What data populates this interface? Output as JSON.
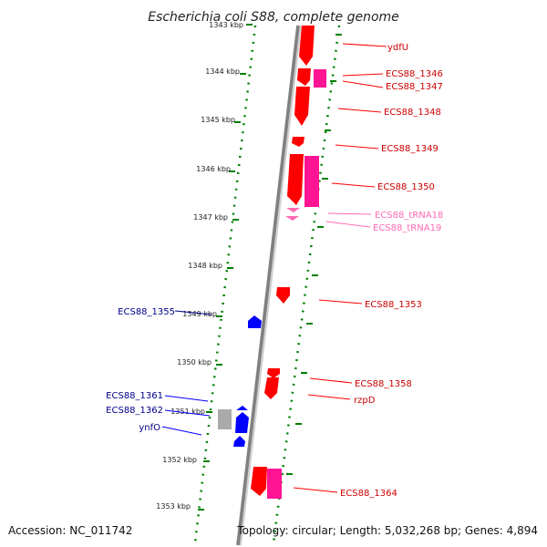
{
  "title": "Escherichia coli S88, complete genome",
  "accession": "Accession: NC_011742",
  "summary": "Topology: circular; Length: 5,032,268 bp; Genes: 4,894",
  "colors": {
    "forward_gene": "#ff0000",
    "forward_gene_alt": "#ff1493",
    "trna": "#ff69b4",
    "reverse_gene": "#0000ff",
    "grey_gene": "#aaaaaa",
    "ruler": "#008000",
    "backbone": "#808080",
    "label_forward": "#cc0000",
    "label_trna": "#ff69b4",
    "label_reverse": "#00008b"
  },
  "scale": {
    "partial_tick_label": "1343 kbp",
    "ticks": [
      "1344 kbp",
      "1345 kbp",
      "1346 kbp",
      "1347 kbp",
      "1348 kbp",
      "1349 kbp",
      "1350 kbp",
      "1351 kbp",
      "1352 kbp",
      "1353 kbp"
    ]
  },
  "labels": {
    "forward": [
      "ydfU",
      "ECS88_1346",
      "ECS88_1347",
      "ECS88_1348",
      "ECS88_1349",
      "ECS88_1350",
      "ECS88_1353",
      "ECS88_1358",
      "rzpD",
      "ECS88_1364"
    ],
    "trna": [
      "ECS88_tRNA18",
      "ECS88_tRNA19"
    ],
    "reverse": [
      "ECS88_1355",
      "ECS88_1361",
      "ECS88_1362",
      "ynfO"
    ]
  }
}
